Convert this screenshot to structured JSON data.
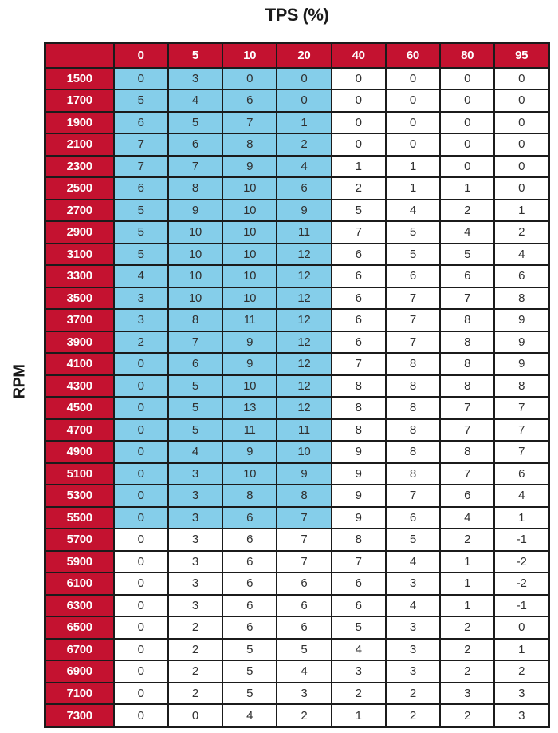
{
  "title": "TPS (%)",
  "ylabel": "RPM",
  "colors": {
    "header_red": "#c41230",
    "highlight_blue": "#85ceea",
    "border_black": "#1b1b1b",
    "data_text": "#303030",
    "header_text": "#ffffff"
  },
  "highlight": {
    "num_rows": 21,
    "num_cols": 4,
    "first_rpm": "1500",
    "last_rpm": "5500",
    "tps_cols": [
      "0",
      "5",
      "10",
      "20"
    ],
    "color": "#85ceea"
  },
  "chart_data": {
    "type": "table",
    "title": "TPS (%)",
    "xlabel": "TPS (%)",
    "ylabel": "RPM",
    "columns": [
      "0",
      "5",
      "10",
      "20",
      "40",
      "60",
      "80",
      "95"
    ],
    "rows": [
      {
        "rpm": "1500",
        "values": [
          0,
          3,
          0,
          0,
          0,
          0,
          0,
          0
        ]
      },
      {
        "rpm": "1700",
        "values": [
          5,
          4,
          6,
          0,
          0,
          0,
          0,
          0
        ]
      },
      {
        "rpm": "1900",
        "values": [
          6,
          5,
          7,
          1,
          0,
          0,
          0,
          0
        ]
      },
      {
        "rpm": "2100",
        "values": [
          7,
          6,
          8,
          2,
          0,
          0,
          0,
          0
        ]
      },
      {
        "rpm": "2300",
        "values": [
          7,
          7,
          9,
          4,
          1,
          1,
          0,
          0
        ]
      },
      {
        "rpm": "2500",
        "values": [
          6,
          8,
          10,
          6,
          2,
          1,
          1,
          0
        ]
      },
      {
        "rpm": "2700",
        "values": [
          5,
          9,
          10,
          9,
          5,
          4,
          2,
          1
        ]
      },
      {
        "rpm": "2900",
        "values": [
          5,
          10,
          10,
          11,
          7,
          5,
          4,
          2
        ]
      },
      {
        "rpm": "3100",
        "values": [
          5,
          10,
          10,
          12,
          6,
          5,
          5,
          4
        ]
      },
      {
        "rpm": "3300",
        "values": [
          4,
          10,
          10,
          12,
          6,
          6,
          6,
          6
        ]
      },
      {
        "rpm": "3500",
        "values": [
          3,
          10,
          10,
          12,
          6,
          7,
          7,
          8
        ]
      },
      {
        "rpm": "3700",
        "values": [
          3,
          8,
          11,
          12,
          6,
          7,
          8,
          9
        ]
      },
      {
        "rpm": "3900",
        "values": [
          2,
          7,
          9,
          12,
          6,
          7,
          8,
          9
        ]
      },
      {
        "rpm": "4100",
        "values": [
          0,
          6,
          9,
          12,
          7,
          8,
          8,
          9
        ]
      },
      {
        "rpm": "4300",
        "values": [
          0,
          5,
          10,
          12,
          8,
          8,
          8,
          8
        ]
      },
      {
        "rpm": "4500",
        "values": [
          0,
          5,
          13,
          12,
          8,
          8,
          7,
          7
        ]
      },
      {
        "rpm": "4700",
        "values": [
          0,
          5,
          11,
          11,
          8,
          8,
          7,
          7
        ]
      },
      {
        "rpm": "4900",
        "values": [
          0,
          4,
          9,
          10,
          9,
          8,
          8,
          7
        ]
      },
      {
        "rpm": "5100",
        "values": [
          0,
          3,
          10,
          9,
          9,
          8,
          7,
          6
        ]
      },
      {
        "rpm": "5300",
        "values": [
          0,
          3,
          8,
          8,
          9,
          7,
          6,
          4
        ]
      },
      {
        "rpm": "5500",
        "values": [
          0,
          3,
          6,
          7,
          9,
          6,
          4,
          1
        ]
      },
      {
        "rpm": "5700",
        "values": [
          0,
          3,
          6,
          7,
          8,
          5,
          2,
          -1
        ]
      },
      {
        "rpm": "5900",
        "values": [
          0,
          3,
          6,
          7,
          7,
          4,
          1,
          -2
        ]
      },
      {
        "rpm": "6100",
        "values": [
          0,
          3,
          6,
          6,
          6,
          3,
          1,
          -2
        ]
      },
      {
        "rpm": "6300",
        "values": [
          0,
          3,
          6,
          6,
          6,
          4,
          1,
          -1
        ]
      },
      {
        "rpm": "6500",
        "values": [
          0,
          2,
          6,
          6,
          5,
          3,
          2,
          0
        ]
      },
      {
        "rpm": "6700",
        "values": [
          0,
          2,
          5,
          5,
          4,
          3,
          2,
          1
        ]
      },
      {
        "rpm": "6900",
        "values": [
          0,
          2,
          5,
          4,
          3,
          3,
          2,
          2
        ]
      },
      {
        "rpm": "7100",
        "values": [
          0,
          2,
          5,
          3,
          2,
          2,
          3,
          3
        ]
      },
      {
        "rpm": "7300",
        "values": [
          0,
          0,
          4,
          2,
          1,
          2,
          2,
          3
        ]
      }
    ]
  }
}
